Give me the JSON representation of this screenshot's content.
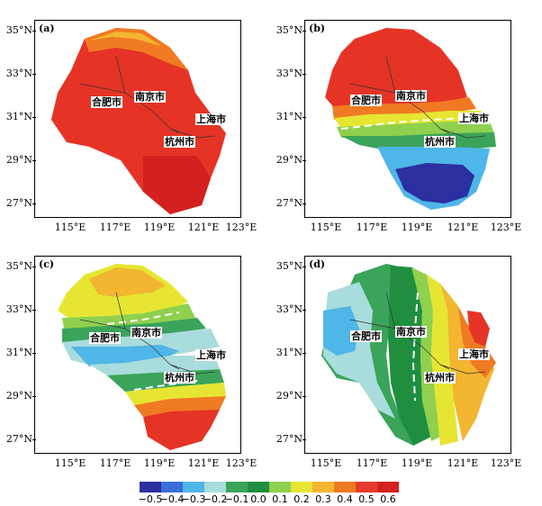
{
  "panels": [
    {
      "label": "(a)",
      "cities": {
        "hefei": "合肥市",
        "nanjing": "南京市",
        "shanghai": "上海市",
        "hangzhou": "杭州市"
      }
    },
    {
      "label": "(b)",
      "cities": {
        "hefei": "合肥市",
        "nanjing": "南京市",
        "shanghai": "上海市",
        "hangzhou": "杭州市"
      }
    },
    {
      "label": "(c)",
      "cities": {
        "hefei": "合肥市",
        "nanjing": "南京市",
        "shanghai": "上海市",
        "hangzhou": "杭州市"
      }
    },
    {
      "label": "(d)",
      "cities": {
        "hefei": "合肥市",
        "nanjing": "南京市",
        "shanghai": "上海市",
        "hangzhou": "杭州市"
      }
    }
  ],
  "axes": {
    "y_ticks": [
      "35°N",
      "33°N",
      "31°N",
      "29°N",
      "27°N"
    ],
    "x_ticks": [
      "115°E",
      "117°E",
      "119°E",
      "121°E",
      "123°E"
    ]
  },
  "colorbar": {
    "labels": [
      "−0.5",
      "−0.4",
      "−0.3",
      "−0.2",
      "−0.1",
      "0.0",
      "0.1",
      "0.2",
      "0.3",
      "0.4",
      "0.5",
      "0.6"
    ],
    "colors": [
      "#2b2fa0",
      "#3b6fd8",
      "#4fb6e8",
      "#a9dcdc",
      "#3aa45a",
      "#1f8f3f",
      "#8fd04e",
      "#e6e632",
      "#f2b630",
      "#f07a22",
      "#e83a2a",
      "#d4201e"
    ]
  }
}
